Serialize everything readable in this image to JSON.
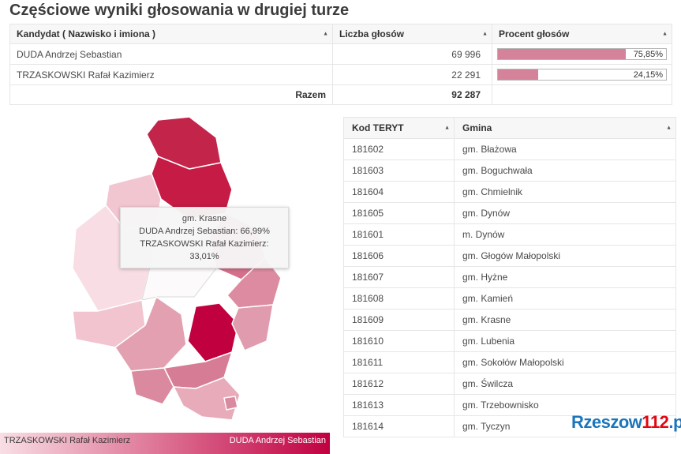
{
  "title": "Częściowe wyniki głosowania w drugiej turze",
  "icons": {
    "sort": "▲"
  },
  "colors": {
    "bar_fill": "#d4839b",
    "bar_border": "#b5b5b5",
    "header_bg": "#f7f7f7",
    "dark_red": "#c00040"
  },
  "results_table": {
    "headers": [
      "Kandydat ( Nazwisko i imiona )",
      "Liczba głosów",
      "Procent głosów"
    ],
    "rows": [
      {
        "candidate": "DUDA Andrzej Sebastian",
        "votes": "69 996",
        "percent": "75,85%",
        "percent_value": 75.85
      },
      {
        "candidate": "TRZASKOWSKI Rafał Kazimierz",
        "votes": "22 291",
        "percent": "24,15%",
        "percent_value": 24.15
      }
    ],
    "total_label": "Razem",
    "total_votes": "92 287"
  },
  "map": {
    "tooltip": {
      "title": "gm. Krasne",
      "line1": "DUDA Andrzej Sebastian: 66,99%",
      "line2": "TRZASKOWSKI Rafał Kazimierz: 33,01%"
    },
    "legend": {
      "left_label": "TRZASKOWSKI Rafał Kazimierz",
      "right_label": "DUDA Andrzej Sebastian",
      "gradient_start": "#f9dee5",
      "gradient_end": "#c00040"
    },
    "regions": [
      {
        "name": "kamien",
        "color": "#c3254a"
      },
      {
        "name": "sokolow-malopolski",
        "color": "#c51b45"
      },
      {
        "name": "trzebownisko",
        "color": "#f2c6d1"
      },
      {
        "name": "glogow-malopolski",
        "color": "#f8dde4"
      },
      {
        "name": "rzeszow-city",
        "color": "#fdfafc"
      },
      {
        "name": "krasne",
        "color": "#d4708c"
      },
      {
        "name": "chmielnik",
        "color": "#dd8ba0"
      },
      {
        "name": "swilcza",
        "color": "#f1c4d0"
      },
      {
        "name": "boguchwala",
        "color": "#e3a0b1"
      },
      {
        "name": "tyczyn",
        "color": "#c10040"
      },
      {
        "name": "hyzne",
        "color": "#e09cae"
      },
      {
        "name": "blazowa",
        "color": "#d67d95"
      },
      {
        "name": "lubenia",
        "color": "#da899e"
      },
      {
        "name": "dynow",
        "color": "#e7abba"
      },
      {
        "name": "m-dynow",
        "color": "#d98aa0"
      }
    ]
  },
  "teryt_table": {
    "headers": [
      "Kod TERYT",
      "Gmina"
    ],
    "rows": [
      [
        "181602",
        "gm. Błażowa"
      ],
      [
        "181603",
        "gm. Boguchwała"
      ],
      [
        "181604",
        "gm. Chmielnik"
      ],
      [
        "181605",
        "gm. Dynów"
      ],
      [
        "181601",
        "m. Dynów"
      ],
      [
        "181606",
        "gm. Głogów Małopolski"
      ],
      [
        "181607",
        "gm. Hyżne"
      ],
      [
        "181608",
        "gm. Kamień"
      ],
      [
        "181609",
        "gm. Krasne"
      ],
      [
        "181610",
        "gm. Lubenia"
      ],
      [
        "181611",
        "gm. Sokołów Małopolski"
      ],
      [
        "181612",
        "gm. Świlcza"
      ],
      [
        "181613",
        "gm. Trzebownisko"
      ],
      [
        "181614",
        "gm. Tyczyn"
      ]
    ]
  },
  "logo": {
    "part1": "Rzeszow",
    "part2": "112",
    "part3": ".pl"
  }
}
